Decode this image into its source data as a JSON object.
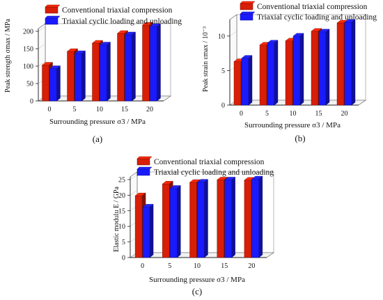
{
  "chart_data": [
    {
      "panel": "a",
      "caption": "(a)",
      "type": "bar",
      "categories": [
        "0",
        "5",
        "10",
        "15",
        "20"
      ],
      "xlabel": "Surrounding pressure σ3 / MPa",
      "ylabel": "Peak strength σmax / MPa",
      "ylim": [
        0,
        200
      ],
      "yticks": [
        "0",
        "50",
        "100",
        "150",
        "200"
      ],
      "series": [
        {
          "name": "Conventional triaxial compression",
          "color": "#d81e06",
          "values": [
            103,
            142,
            166,
            194,
            218
          ]
        },
        {
          "name": "Triaxial cyclic loading and unloading",
          "color": "#1a1aff",
          "values": [
            93,
            136,
            161,
            190,
            214
          ]
        }
      ]
    },
    {
      "panel": "b",
      "caption": "(b)",
      "type": "bar",
      "categories": [
        "0",
        "5",
        "10",
        "15",
        "20"
      ],
      "xlabel": "Surrounding pressure σ3 / MPa",
      "ylabel": "Peak strain εmax / 10⁻³",
      "ylim": [
        0,
        12
      ],
      "yticks": [
        "0",
        "5",
        "10"
      ],
      "series": [
        {
          "name": "Conventional triaxial compression",
          "color": "#d81e06",
          "values": [
            6.3,
            8.7,
            9.3,
            10.7,
            11.9
          ]
        },
        {
          "name": "Triaxial cyclic loading and unloading",
          "color": "#1a1aff",
          "values": [
            6.8,
            9.0,
            10.0,
            10.6,
            12.0
          ]
        }
      ]
    },
    {
      "panel": "c",
      "caption": "(c)",
      "type": "bar",
      "categories": [
        "0",
        "5",
        "10",
        "15",
        "20"
      ],
      "xlabel": "Surrounding pressure σ3 / MPa",
      "ylabel": "Elastic modulu E / GPa",
      "ylim": [
        0,
        25
      ],
      "yticks": [
        "0",
        "5",
        "10",
        "15",
        "20",
        "25"
      ],
      "series": [
        {
          "name": "Conventional triaxial compression",
          "color": "#d81e06",
          "values": [
            19.8,
            23.6,
            24.1,
            24.9,
            24.8
          ]
        },
        {
          "name": "Triaxial cyclic loading and unloading",
          "color": "#1a1aff",
          "values": [
            16.2,
            22.2,
            24.2,
            24.9,
            25.2
          ]
        }
      ]
    }
  ]
}
